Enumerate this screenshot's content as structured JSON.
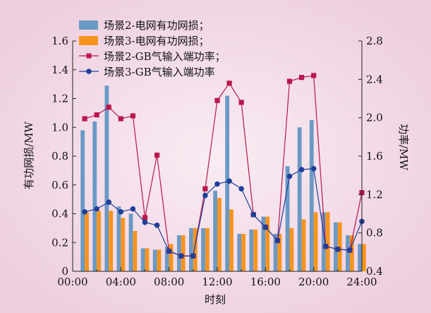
{
  "chart_data": {
    "type": "bar",
    "xlabel": "时刻",
    "ylabel_left": "有功网损/MW",
    "ylabel_right": "功率/MW",
    "ylim_left": [
      0,
      1.6
    ],
    "ylim_right": [
      0.4,
      2.8
    ],
    "yticks_left": [
      "0",
      "0.2",
      "0.4",
      "0.6",
      "0.8",
      "1.0",
      "1.2",
      "1.4",
      "1.6"
    ],
    "yticks_right": [
      "0.4",
      "0.8",
      "1.2",
      "1.6",
      "2.0",
      "2.4",
      "2.8"
    ],
    "xticks": [
      "00:00",
      "04:00",
      "08:00",
      "12:00",
      "16:00",
      "20:00",
      "24:00"
    ],
    "categories": [
      1,
      2,
      3,
      4,
      5,
      6,
      7,
      8,
      9,
      10,
      11,
      12,
      13,
      14,
      15,
      16,
      17,
      18,
      19,
      20,
      21,
      22,
      23,
      24
    ],
    "legend": [
      "场景2-电网有功网损；",
      "场景3-电网有功网损；",
      "场景2-GB气输入端功率；",
      "场景3-GB气输入端功率"
    ],
    "colors": {
      "bar2": "#6a9ac4",
      "bar3": "#f7941d",
      "line2": "#b8174d",
      "line3": "#1f3f99"
    },
    "series": [
      {
        "name": "场景2-电网有功网损；",
        "type": "bar",
        "axis": "left",
        "values": [
          0.98,
          1.04,
          1.29,
          0.45,
          0.4,
          0.16,
          0.15,
          0.17,
          0.25,
          0.3,
          0.3,
          0.56,
          1.22,
          0.26,
          0.29,
          0.38,
          0.26,
          0.73,
          1.0,
          1.05,
          0.41,
          0.34,
          0.25,
          0.19
        ]
      },
      {
        "name": "场景3-电网有功网损；",
        "type": "bar",
        "axis": "left",
        "values": [
          0.41,
          0.42,
          0.42,
          0.37,
          0.28,
          0.16,
          0.15,
          0.19,
          0.25,
          0.3,
          0.3,
          0.51,
          0.43,
          0.26,
          0.29,
          0.38,
          0.26,
          0.3,
          0.36,
          0.41,
          0.41,
          0.34,
          0.25,
          0.19
        ]
      },
      {
        "name": "场景2-GB气输入端功率；",
        "type": "line",
        "axis": "right",
        "values": [
          1.99,
          2.03,
          2.11,
          1.99,
          2.02,
          0.96,
          1.61,
          0.61,
          0.56,
          0.56,
          1.26,
          2.18,
          2.36,
          2.16,
          0.99,
          0.86,
          0.72,
          2.38,
          2.42,
          2.44,
          0.66,
          0.63,
          0.62,
          1.22
        ]
      },
      {
        "name": "场景3-GB气输入端功率",
        "type": "line",
        "axis": "right",
        "values": [
          1.02,
          1.05,
          1.12,
          1.02,
          1.05,
          0.91,
          0.88,
          0.61,
          0.56,
          0.56,
          1.19,
          1.31,
          1.34,
          1.26,
          0.99,
          0.86,
          0.72,
          1.39,
          1.46,
          1.47,
          0.66,
          0.63,
          0.62,
          0.92
        ]
      }
    ]
  }
}
